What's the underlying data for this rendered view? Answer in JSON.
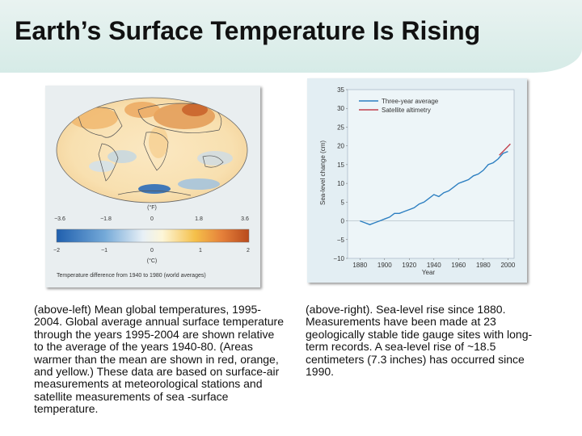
{
  "slide": {
    "title": "Earth’s Surface Temperature Is Rising",
    "caption_left": "(above-left) Mean global temperatures, 1995-2004. Global average annual surface temperature through the years 1995-2004 are shown relative to the average of the years 1940-80. (Areas warmer than the mean are shown in red, orange, and yellow.) These data are based on surface-air measurements at meteorological stations and satellite measurements of sea -surface temperature.",
    "caption_right": "(above-right). Sea-level rise since 1880. Measurements have been made at 23 geologically stable tide gauge sites with long-term records. A sea-level rise of ~18.5 centimeters (7.3 inches) has occurred since 1990."
  },
  "map": {
    "f_unit": "(°F)",
    "c_unit": "(°C)",
    "f_ticks": [
      "−3.6",
      "−1.8",
      "0",
      "1.8",
      "3.6"
    ],
    "c_ticks": [
      "−2",
      "−1",
      "0",
      "1",
      "2"
    ],
    "caption": "Temperature difference from 1940 to 1980 (world averages)",
    "colors": {
      "cold": "#1f5fae",
      "neutral": "#fdfbe6",
      "warm": "#c0531f"
    }
  },
  "chart_data": {
    "type": "line",
    "title": "",
    "xlabel": "Year",
    "ylabel": "Sea-level change (cm)",
    "xlim": [
      1870,
      2005
    ],
    "ylim": [
      -10,
      35
    ],
    "xticks": [
      1880,
      1900,
      1920,
      1940,
      1960,
      1980,
      2000
    ],
    "yticks": [
      -10,
      -5,
      0,
      5,
      10,
      15,
      20,
      25,
      30,
      35
    ],
    "legend_position": "top-left",
    "series": [
      {
        "name": "Three-year average",
        "color": "#2d7fc1",
        "x": [
          1880,
          1884,
          1888,
          1892,
          1896,
          1900,
          1904,
          1908,
          1912,
          1916,
          1920,
          1924,
          1928,
          1932,
          1936,
          1940,
          1944,
          1948,
          1952,
          1956,
          1960,
          1964,
          1968,
          1972,
          1976,
          1980,
          1984,
          1988,
          1992,
          1996,
          2000
        ],
        "y": [
          0,
          -0.5,
          -1,
          -0.5,
          0,
          0.5,
          1,
          2,
          2,
          2.5,
          3,
          3.5,
          4.5,
          5,
          6,
          7,
          6.5,
          7.5,
          8,
          9,
          10,
          10.5,
          11,
          12,
          12.5,
          13.5,
          15,
          15.5,
          16.5,
          18,
          18.5
        ]
      },
      {
        "name": "Satellite altimetry",
        "color": "#c2424f",
        "x": [
          1993,
          1996,
          1999,
          2002
        ],
        "y": [
          17.5,
          18.5,
          19.5,
          20.5
        ]
      }
    ]
  }
}
